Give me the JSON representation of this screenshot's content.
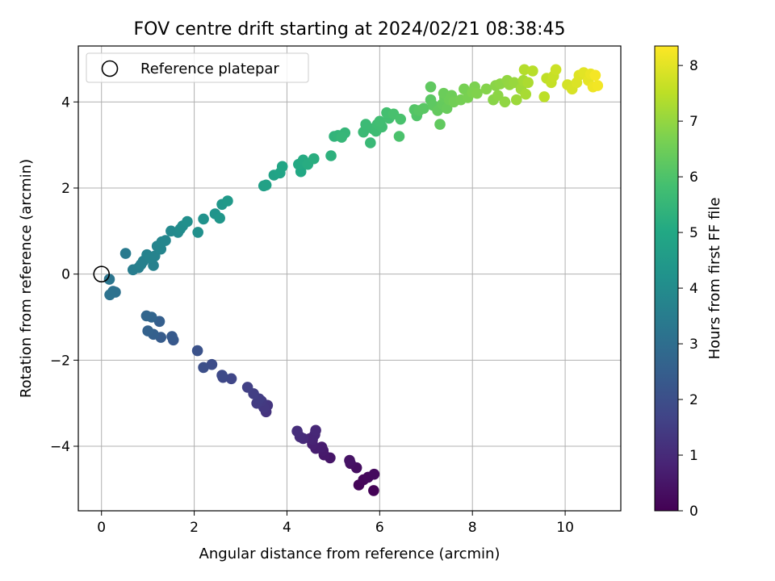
{
  "chart_data": {
    "type": "scatter",
    "title": "FOV centre drift starting at 2024/02/21 08:38:45",
    "xlabel": "Angular distance from reference (arcmin)",
    "ylabel": "Rotation from reference (arcmin)",
    "xlim": [
      -0.5,
      11.2
    ],
    "ylim": [
      -5.5,
      5.3
    ],
    "xticks": [
      0,
      2,
      4,
      6,
      8,
      10
    ],
    "xtick_labels": [
      "0",
      "2",
      "4",
      "6",
      "8",
      "10"
    ],
    "yticks": [
      -4,
      -2,
      0,
      2,
      4
    ],
    "ytick_labels": [
      "−4",
      "−2",
      "0",
      "2",
      "4"
    ],
    "grid": true,
    "legend": {
      "position": "top-left",
      "entries": [
        {
          "label": "Reference platepar",
          "marker": "open-circle"
        }
      ]
    },
    "reference_point": {
      "x": 0,
      "y": 0
    },
    "colorbar": {
      "label": "Hours from first FF file",
      "colormap": "viridis",
      "range": [
        0,
        8.35
      ],
      "ticks": [
        0,
        1,
        2,
        3,
        4,
        5,
        6,
        7,
        8
      ],
      "tick_labels": [
        "0",
        "1",
        "2",
        "3",
        "4",
        "5",
        "6",
        "7",
        "8"
      ]
    },
    "points": [
      [
        5.87,
        -5.03,
        0.05
      ],
      [
        5.55,
        -4.9,
        0.1
      ],
      [
        5.65,
        -4.78,
        0.15
      ],
      [
        5.75,
        -4.72,
        0.2
      ],
      [
        5.88,
        -4.65,
        0.25
      ],
      [
        5.5,
        -4.5,
        0.3
      ],
      [
        5.37,
        -4.4,
        0.35
      ],
      [
        5.35,
        -4.33,
        0.42
      ],
      [
        4.93,
        -4.27,
        0.5
      ],
      [
        4.8,
        -4.2,
        0.55
      ],
      [
        4.78,
        -4.1,
        0.6
      ],
      [
        4.75,
        -4.02,
        0.65
      ],
      [
        4.62,
        -4.05,
        0.7
      ],
      [
        4.55,
        -3.95,
        0.75
      ],
      [
        4.55,
        -3.85,
        0.8
      ],
      [
        4.5,
        -3.82,
        0.85
      ],
      [
        4.6,
        -3.73,
        0.9
      ],
      [
        4.62,
        -3.63,
        0.95
      ],
      [
        4.35,
        -3.82,
        1.0
      ],
      [
        4.28,
        -3.78,
        1.05
      ],
      [
        4.22,
        -3.65,
        1.1
      ],
      [
        3.55,
        -3.2,
        1.25
      ],
      [
        3.58,
        -3.05,
        1.3
      ],
      [
        3.5,
        -3.1,
        1.35
      ],
      [
        3.45,
        -2.95,
        1.4
      ],
      [
        3.35,
        -3.0,
        1.45
      ],
      [
        3.4,
        -2.9,
        1.5
      ],
      [
        3.28,
        -2.78,
        1.55
      ],
      [
        3.15,
        -2.63,
        1.6
      ],
      [
        2.8,
        -2.43,
        1.75
      ],
      [
        2.62,
        -2.4,
        1.8
      ],
      [
        2.6,
        -2.35,
        1.85
      ],
      [
        2.38,
        -2.1,
        1.95
      ],
      [
        2.2,
        -2.17,
        2.0
      ],
      [
        2.07,
        -1.78,
        2.1
      ],
      [
        1.55,
        -1.53,
        2.3
      ],
      [
        1.52,
        -1.45,
        2.35
      ],
      [
        1.28,
        -1.47,
        2.4
      ],
      [
        1.25,
        -1.1,
        2.5
      ],
      [
        1.12,
        -1.4,
        2.55
      ],
      [
        1.0,
        -1.32,
        2.6
      ],
      [
        1.08,
        -1.0,
        2.7
      ],
      [
        0.97,
        -0.97,
        2.75
      ],
      [
        0.3,
        -0.42,
        3.1
      ],
      [
        0.25,
        -0.4,
        3.12
      ],
      [
        0.18,
        -0.48,
        3.15
      ],
      [
        0.17,
        -0.12,
        3.25
      ],
      [
        0.52,
        0.48,
        3.4
      ],
      [
        0.68,
        0.1,
        3.5
      ],
      [
        0.8,
        0.15,
        3.55
      ],
      [
        0.85,
        0.22,
        3.6
      ],
      [
        0.9,
        0.3,
        3.62
      ],
      [
        1.12,
        0.2,
        3.65
      ],
      [
        0.98,
        0.45,
        3.68
      ],
      [
        1.05,
        0.38,
        3.7
      ],
      [
        1.15,
        0.42,
        3.72
      ],
      [
        1.2,
        0.65,
        3.75
      ],
      [
        1.28,
        0.58,
        3.78
      ],
      [
        1.3,
        0.75,
        3.8
      ],
      [
        1.38,
        0.78,
        3.82
      ],
      [
        1.5,
        1.0,
        3.9
      ],
      [
        1.65,
        0.97,
        3.95
      ],
      [
        1.7,
        1.05,
        4.0
      ],
      [
        1.75,
        1.12,
        4.05
      ],
      [
        1.85,
        1.22,
        4.1
      ],
      [
        2.08,
        0.97,
        4.15
      ],
      [
        2.2,
        1.28,
        4.2
      ],
      [
        2.45,
        1.4,
        4.3
      ],
      [
        2.55,
        1.3,
        4.35
      ],
      [
        2.6,
        1.62,
        4.4
      ],
      [
        2.72,
        1.7,
        4.45
      ],
      [
        3.5,
        2.05,
        4.7
      ],
      [
        3.55,
        2.07,
        4.75
      ],
      [
        3.72,
        2.3,
        4.8
      ],
      [
        3.85,
        2.35,
        4.85
      ],
      [
        3.9,
        2.5,
        4.9
      ],
      [
        4.3,
        2.38,
        5.0
      ],
      [
        4.25,
        2.55,
        5.05
      ],
      [
        4.35,
        2.65,
        5.1
      ],
      [
        4.45,
        2.55,
        5.15
      ],
      [
        4.58,
        2.68,
        5.2
      ],
      [
        4.95,
        2.75,
        5.3
      ],
      [
        5.02,
        3.2,
        5.4
      ],
      [
        5.1,
        3.22,
        5.45
      ],
      [
        5.25,
        3.28,
        5.5
      ],
      [
        5.18,
        3.18,
        5.52
      ],
      [
        5.8,
        3.05,
        5.6
      ],
      [
        5.65,
        3.3,
        5.62
      ],
      [
        5.7,
        3.48,
        5.65
      ],
      [
        5.85,
        3.38,
        5.68
      ],
      [
        5.92,
        3.32,
        5.7
      ],
      [
        5.95,
        3.48,
        5.72
      ],
      [
        6.05,
        3.42,
        5.75
      ],
      [
        6.0,
        3.55,
        5.78
      ],
      [
        6.2,
        3.62,
        5.82
      ],
      [
        6.15,
        3.75,
        5.85
      ],
      [
        6.3,
        3.72,
        5.9
      ],
      [
        6.45,
        3.6,
        5.92
      ],
      [
        6.42,
        3.2,
        5.95
      ],
      [
        6.8,
        3.68,
        6.05
      ],
      [
        6.75,
        3.82,
        6.1
      ],
      [
        6.85,
        3.8,
        6.15
      ],
      [
        6.95,
        3.85,
        6.18
      ],
      [
        7.1,
        4.05,
        6.2
      ],
      [
        7.15,
        3.92,
        6.25
      ],
      [
        7.1,
        4.35,
        6.28
      ],
      [
        7.3,
        3.48,
        6.3
      ],
      [
        7.25,
        3.8,
        6.32
      ],
      [
        7.35,
        3.95,
        6.35
      ],
      [
        7.4,
        4.1,
        6.38
      ],
      [
        7.45,
        3.85,
        6.4
      ],
      [
        7.38,
        4.2,
        6.45
      ],
      [
        7.5,
        4.05,
        6.48
      ],
      [
        7.55,
        4.15,
        6.5
      ],
      [
        7.6,
        4.0,
        6.55
      ],
      [
        7.75,
        4.05,
        6.6
      ],
      [
        7.82,
        4.3,
        6.62
      ],
      [
        7.9,
        4.1,
        6.65
      ],
      [
        8.05,
        4.35,
        6.7
      ],
      [
        8.0,
        4.22,
        6.72
      ],
      [
        8.1,
        4.2,
        6.75
      ],
      [
        8.3,
        4.3,
        6.8
      ],
      [
        8.45,
        4.05,
        6.85
      ],
      [
        8.5,
        4.38,
        6.88
      ],
      [
        8.55,
        4.15,
        6.9
      ],
      [
        8.6,
        4.42,
        6.92
      ],
      [
        8.7,
        4.0,
        6.95
      ],
      [
        8.75,
        4.5,
        6.98
      ],
      [
        8.8,
        4.4,
        7.0
      ],
      [
        8.9,
        4.45,
        7.05
      ],
      [
        8.95,
        4.05,
        7.1
      ],
      [
        9.05,
        4.3,
        7.15
      ],
      [
        9.1,
        4.5,
        7.2
      ],
      [
        9.15,
        4.18,
        7.25
      ],
      [
        9.2,
        4.45,
        7.3
      ],
      [
        9.12,
        4.75,
        7.4
      ],
      [
        9.3,
        4.72,
        7.45
      ],
      [
        9.55,
        4.12,
        7.5
      ],
      [
        9.6,
        4.55,
        7.55
      ],
      [
        9.7,
        4.45,
        7.6
      ],
      [
        9.75,
        4.6,
        7.65
      ],
      [
        9.8,
        4.75,
        7.7
      ],
      [
        10.05,
        4.4,
        7.8
      ],
      [
        10.15,
        4.3,
        7.85
      ],
      [
        10.25,
        4.45,
        7.9
      ],
      [
        10.3,
        4.62,
        7.95
      ],
      [
        10.4,
        4.68,
        8.0
      ],
      [
        10.5,
        4.5,
        8.05
      ],
      [
        10.55,
        4.65,
        8.1
      ],
      [
        10.6,
        4.35,
        8.15
      ],
      [
        10.7,
        4.38,
        8.2
      ],
      [
        10.65,
        4.62,
        8.25
      ]
    ]
  }
}
